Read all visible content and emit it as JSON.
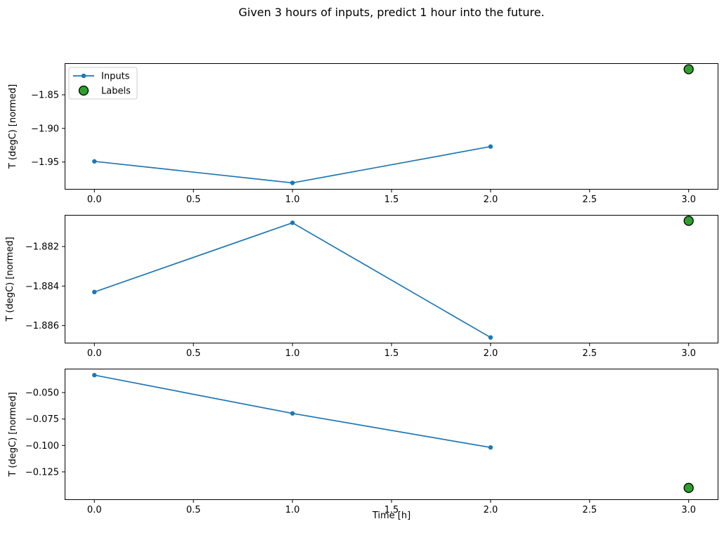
{
  "figure": {
    "title": "Given 3 hours of inputs, predict 1 hour into the future.",
    "xlabel": "Time [h]",
    "background": "#ffffff"
  },
  "colors": {
    "inputs_line": "#1f77b4",
    "labels_marker_fill": "#2ca02c",
    "labels_marker_edge": "#000000",
    "axis": "#000000",
    "legend_border": "#cccccc",
    "legend_background": "#ffffff"
  },
  "legend": {
    "entries": [
      {
        "label": "Inputs",
        "type": "line-marker-icon",
        "color": "#1f77b4"
      },
      {
        "label": "Labels",
        "type": "circle-marker-icon",
        "color": "#2ca02c",
        "edge": "#000000"
      }
    ]
  },
  "chart_data": [
    {
      "type": "line",
      "ylabel": "T (degC) [normed]",
      "xlim": [
        -0.15,
        3.15
      ],
      "ylim": [
        -1.991,
        -1.803
      ],
      "grid": false,
      "legend_position": "upper left",
      "xticks": [
        {
          "v": 0.0,
          "label": "0.0"
        },
        {
          "v": 0.5,
          "label": "0.5"
        },
        {
          "v": 1.0,
          "label": "1.0"
        },
        {
          "v": 1.5,
          "label": "1.5"
        },
        {
          "v": 2.0,
          "label": "2.0"
        },
        {
          "v": 2.5,
          "label": "2.5"
        },
        {
          "v": 3.0,
          "label": "3.0"
        }
      ],
      "yticks": [
        {
          "v": -1.85,
          "label": "−1.85"
        },
        {
          "v": -1.9,
          "label": "−1.90"
        },
        {
          "v": -1.95,
          "label": "−1.95"
        }
      ],
      "series": [
        {
          "name": "Inputs",
          "kind": "line",
          "x": [
            0,
            1,
            2
          ],
          "y": [
            -1.949,
            -1.981,
            -1.927
          ]
        },
        {
          "name": "Labels",
          "kind": "scatter",
          "x": [
            3
          ],
          "y": [
            -1.812
          ]
        }
      ],
      "show_legend": true
    },
    {
      "type": "line",
      "ylabel": "T (degC) [normed]",
      "xlim": [
        -0.15,
        3.15
      ],
      "ylim": [
        -1.8869,
        -1.8804
      ],
      "grid": false,
      "xticks": [
        {
          "v": 0.0,
          "label": "0.0"
        },
        {
          "v": 0.5,
          "label": "0.5"
        },
        {
          "v": 1.0,
          "label": "1.0"
        },
        {
          "v": 1.5,
          "label": "1.5"
        },
        {
          "v": 2.0,
          "label": "2.0"
        },
        {
          "v": 2.5,
          "label": "2.5"
        },
        {
          "v": 3.0,
          "label": "3.0"
        }
      ],
      "yticks": [
        {
          "v": -1.882,
          "label": "−1.882"
        },
        {
          "v": -1.884,
          "label": "−1.884"
        },
        {
          "v": -1.886,
          "label": "−1.886"
        }
      ],
      "series": [
        {
          "name": "Inputs",
          "kind": "line",
          "x": [
            0,
            1,
            2
          ],
          "y": [
            -1.8843,
            -1.8808,
            -1.8866
          ]
        },
        {
          "name": "Labels",
          "kind": "scatter",
          "x": [
            3
          ],
          "y": [
            -1.8807
          ]
        }
      ],
      "show_legend": false
    },
    {
      "type": "line",
      "ylabel": "T (degC) [normed]",
      "xlim": [
        -0.15,
        3.15
      ],
      "ylim": [
        -0.1516,
        -0.0274
      ],
      "grid": false,
      "xticks": [
        {
          "v": 0.0,
          "label": "0.0"
        },
        {
          "v": 0.5,
          "label": "0.5"
        },
        {
          "v": 1.0,
          "label": "1.0"
        },
        {
          "v": 1.5,
          "label": "1.5"
        },
        {
          "v": 2.0,
          "label": "2.0"
        },
        {
          "v": 2.5,
          "label": "2.5"
        },
        {
          "v": 3.0,
          "label": "3.0"
        }
      ],
      "yticks": [
        {
          "v": -0.05,
          "label": "−0.050"
        },
        {
          "v": -0.075,
          "label": "−0.075"
        },
        {
          "v": -0.1,
          "label": "−0.100"
        },
        {
          "v": -0.125,
          "label": "−0.125"
        }
      ],
      "series": [
        {
          "name": "Inputs",
          "kind": "line",
          "x": [
            0,
            1,
            2
          ],
          "y": [
            -0.0335,
            -0.0697,
            -0.1019
          ]
        },
        {
          "name": "Labels",
          "kind": "scatter",
          "x": [
            3
          ],
          "y": [
            -0.1402
          ]
        }
      ],
      "show_legend": false
    }
  ]
}
